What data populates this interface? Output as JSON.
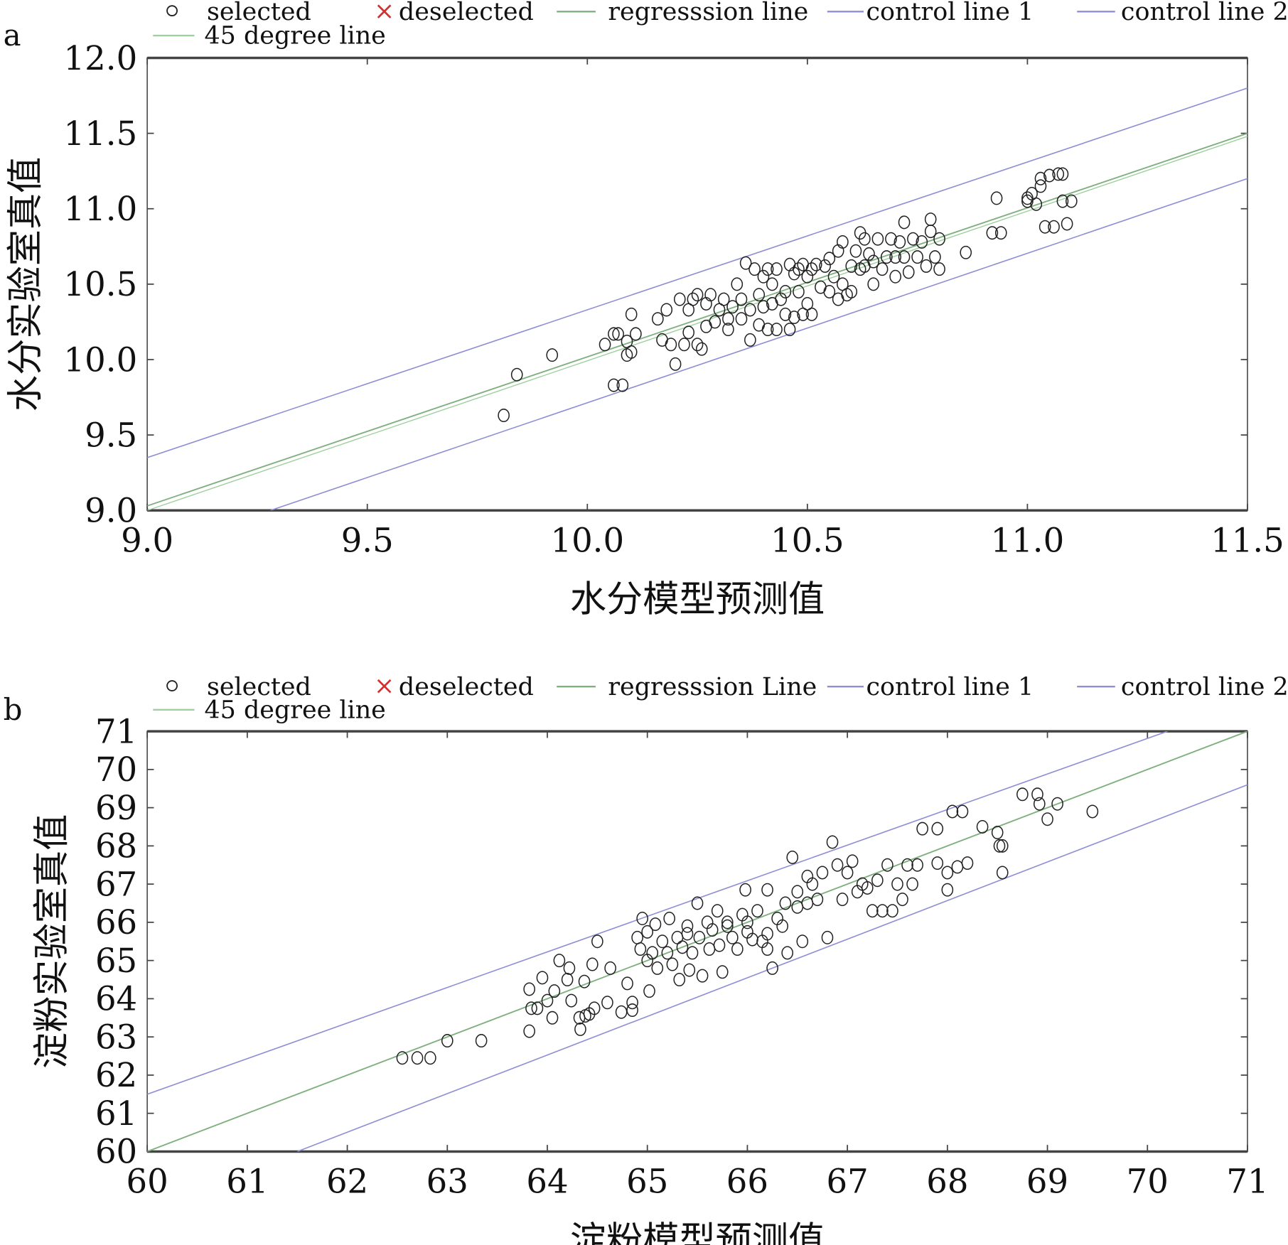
{
  "colors": {
    "regression": "#7fb07f",
    "line45": "#9fcf9f",
    "control": "#8f8fd6",
    "points": "#222222",
    "deselected": "#d0302f",
    "frame": "#555555"
  },
  "chart_data": [
    {
      "type": "scatter",
      "panel_label": "a",
      "legend": {
        "selected": "selected",
        "deselected": "deselected",
        "regression": "regresssion line",
        "control1": "control line 1",
        "control2": "control line 2",
        "line45": "45 degree line",
        "placement": "top"
      },
      "xlabel": "水分模型预测值",
      "ylabel": "水分实验室真值",
      "xlim": [
        9.0,
        11.5
      ],
      "ylim": [
        9.0,
        12.0
      ],
      "xticks": [
        "9.0",
        "9.5",
        "10.0",
        "10.5",
        "11.0",
        "11.5"
      ],
      "yticks": [
        "9.0",
        "9.5",
        "10.0",
        "10.5",
        "11.0",
        "11.5",
        "12.0"
      ],
      "lines": {
        "control1": [
          [
            9.0,
            9.35
          ],
          [
            11.5,
            11.8
          ]
        ],
        "regression": [
          [
            9.0,
            9.03
          ],
          [
            11.5,
            11.5
          ]
        ],
        "line45": [
          [
            9.0,
            9.0
          ],
          [
            11.5,
            11.48
          ]
        ],
        "control2": [
          [
            9.28,
            9.0
          ],
          [
            11.5,
            11.2
          ]
        ]
      },
      "points": [
        [
          9.81,
          9.63
        ],
        [
          9.84,
          9.9
        ],
        [
          9.92,
          10.03
        ],
        [
          10.04,
          10.1
        ],
        [
          10.06,
          10.17
        ],
        [
          10.06,
          9.83
        ],
        [
          10.08,
          9.83
        ],
        [
          10.07,
          10.17
        ],
        [
          10.09,
          10.12
        ],
        [
          10.09,
          10.03
        ],
        [
          10.1,
          10.05
        ],
        [
          10.1,
          10.3
        ],
        [
          10.11,
          10.17
        ],
        [
          10.16,
          10.27
        ],
        [
          10.17,
          10.13
        ],
        [
          10.18,
          10.33
        ],
        [
          10.19,
          10.1
        ],
        [
          10.2,
          9.97
        ],
        [
          10.21,
          10.4
        ],
        [
          10.22,
          10.1
        ],
        [
          10.23,
          10.33
        ],
        [
          10.23,
          10.18
        ],
        [
          10.24,
          10.4
        ],
        [
          10.25,
          10.43
        ],
        [
          10.25,
          10.1
        ],
        [
          10.26,
          10.07
        ],
        [
          10.27,
          10.37
        ],
        [
          10.27,
          10.22
        ],
        [
          10.28,
          10.43
        ],
        [
          10.29,
          10.25
        ],
        [
          10.3,
          10.33
        ],
        [
          10.31,
          10.4
        ],
        [
          10.32,
          10.27
        ],
        [
          10.32,
          10.2
        ],
        [
          10.33,
          10.35
        ],
        [
          10.34,
          10.5
        ],
        [
          10.35,
          10.27
        ],
        [
          10.35,
          10.4
        ],
        [
          10.36,
          10.64
        ],
        [
          10.37,
          10.33
        ],
        [
          10.37,
          10.13
        ],
        [
          10.38,
          10.6
        ],
        [
          10.39,
          10.43
        ],
        [
          10.39,
          10.23
        ],
        [
          10.4,
          10.55
        ],
        [
          10.4,
          10.35
        ],
        [
          10.41,
          10.6
        ],
        [
          10.41,
          10.2
        ],
        [
          10.42,
          10.5
        ],
        [
          10.42,
          10.37
        ],
        [
          10.43,
          10.6
        ],
        [
          10.43,
          10.2
        ],
        [
          10.44,
          10.4
        ],
        [
          10.45,
          10.45
        ],
        [
          10.45,
          10.3
        ],
        [
          10.46,
          10.63
        ],
        [
          10.46,
          10.2
        ],
        [
          10.47,
          10.57
        ],
        [
          10.47,
          10.28
        ],
        [
          10.48,
          10.6
        ],
        [
          10.48,
          10.45
        ],
        [
          10.49,
          10.63
        ],
        [
          10.49,
          10.3
        ],
        [
          10.5,
          10.55
        ],
        [
          10.5,
          10.37
        ],
        [
          10.51,
          10.6
        ],
        [
          10.51,
          10.3
        ],
        [
          10.52,
          10.63
        ],
        [
          10.53,
          10.48
        ],
        [
          10.54,
          10.62
        ],
        [
          10.55,
          10.45
        ],
        [
          10.55,
          10.67
        ],
        [
          10.56,
          10.55
        ],
        [
          10.57,
          10.4
        ],
        [
          10.57,
          10.72
        ],
        [
          10.58,
          10.5
        ],
        [
          10.58,
          10.78
        ],
        [
          10.59,
          10.43
        ],
        [
          10.6,
          10.62
        ],
        [
          10.6,
          10.45
        ],
        [
          10.61,
          10.72
        ],
        [
          10.62,
          10.6
        ],
        [
          10.62,
          10.84
        ],
        [
          10.63,
          10.62
        ],
        [
          10.63,
          10.8
        ],
        [
          10.64,
          10.7
        ],
        [
          10.65,
          10.5
        ],
        [
          10.65,
          10.65
        ],
        [
          10.66,
          10.8
        ],
        [
          10.67,
          10.6
        ],
        [
          10.68,
          10.68
        ],
        [
          10.69,
          10.8
        ],
        [
          10.7,
          10.55
        ],
        [
          10.7,
          10.68
        ],
        [
          10.71,
          10.78
        ],
        [
          10.72,
          10.91
        ],
        [
          10.72,
          10.68
        ],
        [
          10.73,
          10.58
        ],
        [
          10.74,
          10.8
        ],
        [
          10.75,
          10.68
        ],
        [
          10.76,
          10.78
        ],
        [
          10.77,
          10.62
        ],
        [
          10.78,
          10.85
        ],
        [
          10.78,
          10.93
        ],
        [
          10.79,
          10.68
        ],
        [
          10.8,
          10.8
        ],
        [
          10.8,
          10.6
        ],
        [
          10.86,
          10.71
        ],
        [
          10.92,
          10.84
        ],
        [
          10.94,
          10.84
        ],
        [
          10.93,
          11.07
        ],
        [
          11.0,
          11.07
        ],
        [
          11.0,
          11.05
        ],
        [
          11.01,
          11.1
        ],
        [
          11.02,
          11.03
        ],
        [
          11.03,
          11.15
        ],
        [
          11.03,
          11.2
        ],
        [
          11.04,
          10.88
        ],
        [
          11.05,
          11.22
        ],
        [
          11.06,
          10.88
        ],
        [
          11.07,
          11.23
        ],
        [
          11.08,
          11.05
        ],
        [
          11.09,
          10.9
        ],
        [
          11.1,
          11.05
        ],
        [
          11.08,
          11.23
        ]
      ]
    },
    {
      "type": "scatter",
      "panel_label": "b",
      "legend": {
        "selected": "selected",
        "deselected": "deselected",
        "regression": "regresssion Line",
        "control1": "control line 1",
        "control2": "control line 2",
        "line45": "45 degree line",
        "placement": "top"
      },
      "xlabel": "淀粉模型预测值",
      "ylabel": "淀粉实验室真值",
      "xlim": [
        60,
        71
      ],
      "ylim": [
        60,
        71
      ],
      "xticks": [
        "60",
        "61",
        "62",
        "63",
        "64",
        "65",
        "66",
        "67",
        "68",
        "69",
        "70",
        "71"
      ],
      "yticks": [
        "60",
        "61",
        "62",
        "63",
        "64",
        "65",
        "66",
        "67",
        "68",
        "69",
        "70",
        "71"
      ],
      "lines": {
        "control1": [
          [
            60,
            61.5
          ],
          [
            70.2,
            71
          ]
        ],
        "regression": [
          [
            60,
            60
          ],
          [
            71,
            71
          ]
        ],
        "line45": [
          [
            60,
            60
          ],
          [
            71,
            71
          ]
        ],
        "control2": [
          [
            61.5,
            60
          ],
          [
            71,
            69.6
          ]
        ]
      },
      "points": [
        [
          62.55,
          62.45
        ],
        [
          62.7,
          62.45
        ],
        [
          62.83,
          62.45
        ],
        [
          63.0,
          62.9
        ],
        [
          63.34,
          62.9
        ],
        [
          63.82,
          63.15
        ],
        [
          63.82,
          64.25
        ],
        [
          63.84,
          63.75
        ],
        [
          63.9,
          63.75
        ],
        [
          63.95,
          64.55
        ],
        [
          64.0,
          63.95
        ],
        [
          64.05,
          63.5
        ],
        [
          64.07,
          64.2
        ],
        [
          64.12,
          65.0
        ],
        [
          64.2,
          64.5
        ],
        [
          64.22,
          64.8
        ],
        [
          64.24,
          63.95
        ],
        [
          64.32,
          63.5
        ],
        [
          64.33,
          63.2
        ],
        [
          64.37,
          64.45
        ],
        [
          64.38,
          63.55
        ],
        [
          64.42,
          63.6
        ],
        [
          64.45,
          64.9
        ],
        [
          64.47,
          63.75
        ],
        [
          64.5,
          65.5
        ],
        [
          64.6,
          63.9
        ],
        [
          64.63,
          64.8
        ],
        [
          64.74,
          63.65
        ],
        [
          64.8,
          64.4
        ],
        [
          64.85,
          63.9
        ],
        [
          64.85,
          63.7
        ],
        [
          64.9,
          65.6
        ],
        [
          64.93,
          65.3
        ],
        [
          64.95,
          66.1
        ],
        [
          65.0,
          65.75
        ],
        [
          65.0,
          65.0
        ],
        [
          65.02,
          64.2
        ],
        [
          65.05,
          65.2
        ],
        [
          65.08,
          65.95
        ],
        [
          65.1,
          64.8
        ],
        [
          65.15,
          65.5
        ],
        [
          65.2,
          65.2
        ],
        [
          65.22,
          66.1
        ],
        [
          65.25,
          64.9
        ],
        [
          65.3,
          65.6
        ],
        [
          65.32,
          64.5
        ],
        [
          65.35,
          65.35
        ],
        [
          65.4,
          65.9
        ],
        [
          65.42,
          64.75
        ],
        [
          65.45,
          65.2
        ],
        [
          65.5,
          66.5
        ],
        [
          65.52,
          65.6
        ],
        [
          65.55,
          64.6
        ],
        [
          65.6,
          66.0
        ],
        [
          65.62,
          65.3
        ],
        [
          65.65,
          65.8
        ],
        [
          65.7,
          66.3
        ],
        [
          65.72,
          65.4
        ],
        [
          65.75,
          64.7
        ],
        [
          65.8,
          66.0
        ],
        [
          65.85,
          65.6
        ],
        [
          65.9,
          65.3
        ],
        [
          65.95,
          66.2
        ],
        [
          65.98,
          66.85
        ],
        [
          66.0,
          65.75
        ],
        [
          66.05,
          65.55
        ],
        [
          66.1,
          66.3
        ],
        [
          66.15,
          65.5
        ],
        [
          66.2,
          65.3
        ],
        [
          66.2,
          66.85
        ],
        [
          66.25,
          64.8
        ],
        [
          66.3,
          66.1
        ],
        [
          66.35,
          65.9
        ],
        [
          66.38,
          66.5
        ],
        [
          66.4,
          65.2
        ],
        [
          66.45,
          67.7
        ],
        [
          66.5,
          66.8
        ],
        [
          66.55,
          65.5
        ],
        [
          66.6,
          66.5
        ],
        [
          66.65,
          67.0
        ],
        [
          66.7,
          66.6
        ],
        [
          66.75,
          67.3
        ],
        [
          66.8,
          65.6
        ],
        [
          66.85,
          68.1
        ],
        [
          66.9,
          67.5
        ],
        [
          66.95,
          66.6
        ],
        [
          67.0,
          67.3
        ],
        [
          67.05,
          67.6
        ],
        [
          67.1,
          66.8
        ],
        [
          67.15,
          67.0
        ],
        [
          67.2,
          66.9
        ],
        [
          67.25,
          66.3
        ],
        [
          67.3,
          67.1
        ],
        [
          67.35,
          66.3
        ],
        [
          67.4,
          67.5
        ],
        [
          67.45,
          66.3
        ],
        [
          67.5,
          67.0
        ],
        [
          67.55,
          66.6
        ],
        [
          67.6,
          67.5
        ],
        [
          67.65,
          67.0
        ],
        [
          67.7,
          67.5
        ],
        [
          67.75,
          68.45
        ],
        [
          67.9,
          67.55
        ],
        [
          67.9,
          68.45
        ],
        [
          68.0,
          66.85
        ],
        [
          68.0,
          67.3
        ],
        [
          68.05,
          68.9
        ],
        [
          68.1,
          67.45
        ],
        [
          68.15,
          68.9
        ],
        [
          68.2,
          67.55
        ],
        [
          68.35,
          68.5
        ],
        [
          68.5,
          68.35
        ],
        [
          68.52,
          68.0
        ],
        [
          68.55,
          67.3
        ],
        [
          68.55,
          68.0
        ],
        [
          68.75,
          69.35
        ],
        [
          68.9,
          69.35
        ],
        [
          68.92,
          69.1
        ],
        [
          69.0,
          68.7
        ],
        [
          69.1,
          69.1
        ],
        [
          69.45,
          68.9
        ],
        [
          66.6,
          67.2
        ],
        [
          65.4,
          65.7
        ],
        [
          65.8,
          65.9
        ],
        [
          66.0,
          66.0
        ],
        [
          66.2,
          65.7
        ],
        [
          66.5,
          66.4
        ]
      ]
    }
  ]
}
